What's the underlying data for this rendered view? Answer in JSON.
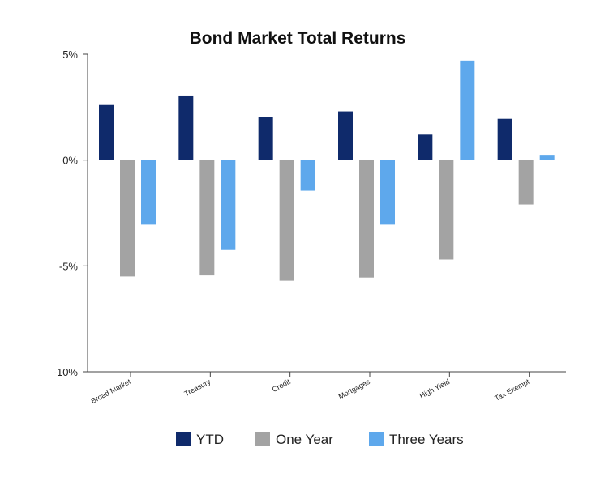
{
  "chart_data": {
    "type": "bar",
    "title": "Bond Market Total Returns",
    "categories": [
      "Broad Market",
      "Treasury",
      "Credit",
      "Mortgages",
      "High Yield",
      "Tax Exempt"
    ],
    "series": [
      {
        "name": "YTD",
        "color": "#0f2a6b",
        "values": [
          2.6,
          3.05,
          2.05,
          2.3,
          1.2,
          1.95
        ]
      },
      {
        "name": "One Year",
        "color": "#a3a3a3",
        "values": [
          -5.5,
          -5.45,
          -5.7,
          -5.55,
          -4.7,
          -2.1
        ]
      },
      {
        "name": "Three Years",
        "color": "#5ea8ec",
        "values": [
          -3.05,
          -4.25,
          -1.45,
          -3.05,
          4.7,
          0.25
        ]
      }
    ],
    "ylim": [
      -10,
      5
    ],
    "yticks": [
      {
        "value": 5,
        "label": "5%"
      },
      {
        "value": 0,
        "label": "0%"
      },
      {
        "value": -5,
        "label": "-5%"
      },
      {
        "value": -10,
        "label": "-10%"
      }
    ],
    "xlabel": "",
    "ylabel": "",
    "grid": false,
    "legend": "bottom"
  }
}
